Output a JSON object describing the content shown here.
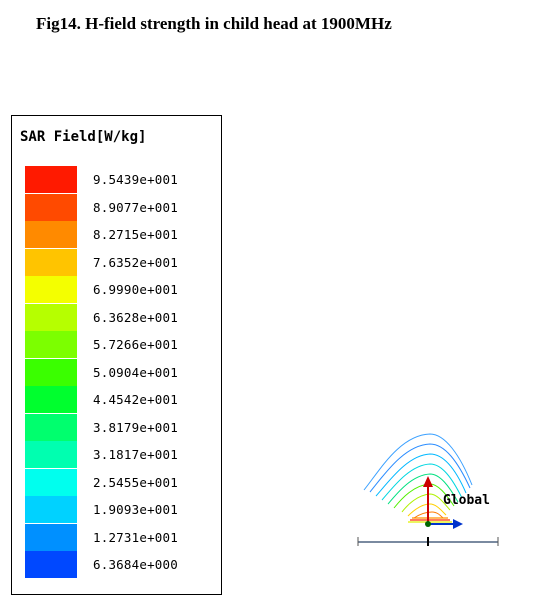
{
  "caption": "Fig14. H-field strength in child head at 1900MHz",
  "legend": {
    "title": "SAR Field[W/kg]",
    "items": [
      {
        "value": "9.5439e+001",
        "color": "#ff1a00"
      },
      {
        "value": "8.9077e+001",
        "color": "#ff4a00"
      },
      {
        "value": "8.2715e+001",
        "color": "#ff8a00"
      },
      {
        "value": "7.6352e+001",
        "color": "#ffc400"
      },
      {
        "value": "6.9990e+001",
        "color": "#f4ff00"
      },
      {
        "value": "6.3628e+001",
        "color": "#b6ff00"
      },
      {
        "value": "5.7266e+001",
        "color": "#7cff00"
      },
      {
        "value": "5.0904e+001",
        "color": "#3aff00"
      },
      {
        "value": "4.4542e+001",
        "color": "#00ff2e"
      },
      {
        "value": "3.8179e+001",
        "color": "#00ff6e"
      },
      {
        "value": "3.1817e+001",
        "color": "#00ffb0"
      },
      {
        "value": "2.5455e+001",
        "color": "#00ffee"
      },
      {
        "value": "1.9093e+001",
        "color": "#00d2ff"
      },
      {
        "value": "1.2731e+001",
        "color": "#0090ff"
      },
      {
        "value": "6.3684e+000",
        "color": "#0048ff"
      }
    ]
  },
  "viewport": {
    "axis_label": "Global",
    "axis_colors": {
      "up": "#cc0000",
      "right": "#0033cc",
      "origin": "#006600"
    }
  }
}
